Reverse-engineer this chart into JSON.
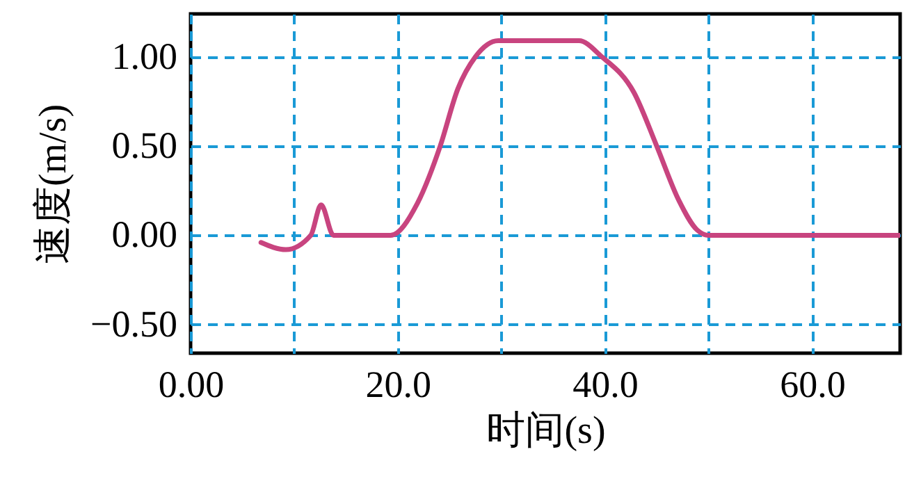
{
  "chart_data": {
    "type": "line",
    "xlabel": "时间(s)",
    "ylabel": "速度(m/s)",
    "x": [
      6.8,
      9.2,
      11.6,
      12.6,
      13.8,
      19.3,
      21.9,
      24.1,
      25.8,
      27.5,
      29.7,
      37.5,
      39.7,
      42.8,
      45.0,
      47.1,
      48.9,
      50.0,
      68.5
    ],
    "series": [
      {
        "color": "#c8447f",
        "values": [
          -0.04,
          -0.08,
          0.0,
          0.17,
          0.0,
          0.0,
          0.18,
          0.5,
          0.82,
          1.0,
          1.09,
          1.09,
          1.0,
          0.8,
          0.5,
          0.2,
          0.03,
          0.0,
          0.0
        ]
      }
    ],
    "xlim": [
      0,
      68.5
    ],
    "ylim": [
      -0.66,
      1.24
    ],
    "xticks": [
      {
        "value": 0,
        "label": "0.00"
      },
      {
        "value": 10,
        "label": null
      },
      {
        "value": 20,
        "label": "20.0"
      },
      {
        "value": 30,
        "label": null
      },
      {
        "value": 40,
        "label": "40.0"
      },
      {
        "value": 50,
        "label": null
      },
      {
        "value": 60,
        "label": "60.0"
      }
    ],
    "yticks": [
      {
        "value": -0.5,
        "label": "−0.50"
      },
      {
        "value": 0,
        "label": "0.00"
      },
      {
        "value": 0.5,
        "label": "0.50"
      },
      {
        "value": 1,
        "label": "1.00"
      }
    ],
    "grid": true,
    "line_style": "solid",
    "marker": "none",
    "legend": false
  }
}
